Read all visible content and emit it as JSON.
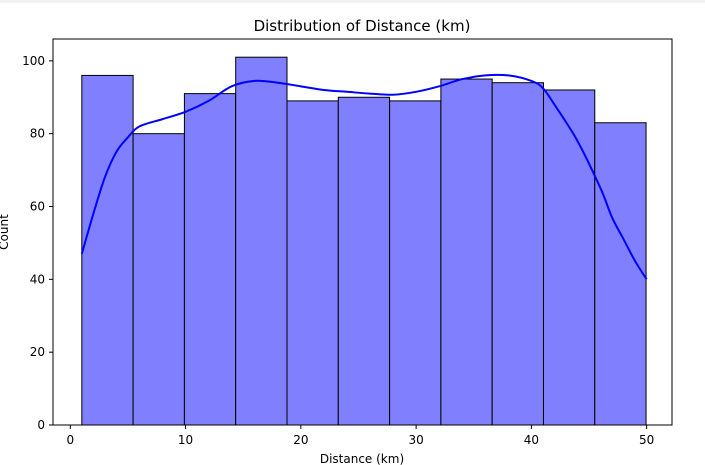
{
  "chart_data": {
    "type": "bar",
    "title": "Distribution of Distance (km)",
    "xlabel": "Distance (km)",
    "ylabel": "Count",
    "xlim": [
      -1.5,
      52.2
    ],
    "ylim": [
      0,
      106
    ],
    "x_ticks": [
      0,
      10,
      20,
      30,
      40,
      50
    ],
    "y_ticks": [
      0,
      20,
      40,
      60,
      80,
      100
    ],
    "bins": [
      {
        "x0": 1.0,
        "x1": 5.45,
        "count": 96
      },
      {
        "x0": 5.45,
        "x1": 9.9,
        "count": 80
      },
      {
        "x0": 9.9,
        "x1": 14.35,
        "count": 91
      },
      {
        "x0": 14.35,
        "x1": 18.8,
        "count": 101
      },
      {
        "x0": 18.8,
        "x1": 23.25,
        "count": 89
      },
      {
        "x0": 23.25,
        "x1": 27.7,
        "count": 90
      },
      {
        "x0": 27.7,
        "x1": 32.15,
        "count": 89
      },
      {
        "x0": 32.15,
        "x1": 36.6,
        "count": 95
      },
      {
        "x0": 36.6,
        "x1": 41.05,
        "count": 94
      },
      {
        "x0": 41.05,
        "x1": 45.5,
        "count": 92
      },
      {
        "x0": 45.5,
        "x1": 49.95,
        "count": 83
      }
    ],
    "kde": {
      "name": "KDE",
      "x": [
        1.0,
        2.0,
        3.0,
        4.0,
        5.0,
        6.0,
        8.0,
        10.0,
        12.0,
        14.0,
        16.0,
        18.0,
        20.0,
        22.0,
        24.0,
        26.0,
        28.0,
        30.0,
        32.0,
        34.0,
        36.0,
        38.0,
        40.0,
        41.0,
        42.0,
        44.0,
        46.0,
        47.0,
        48.0,
        49.0,
        50.0
      ],
      "y": [
        47,
        58,
        68,
        75,
        79,
        82,
        84,
        86,
        89,
        93,
        94.5,
        94,
        93,
        92,
        91.5,
        91,
        90.7,
        91.5,
        93,
        95,
        96,
        96,
        94.5,
        92.5,
        88,
        78,
        65,
        57,
        51,
        45,
        40
      ]
    },
    "bar_color": "#8080ff",
    "bar_edge_color": "#000000",
    "kde_color": "#0000ff",
    "grid": false,
    "legend": false
  }
}
